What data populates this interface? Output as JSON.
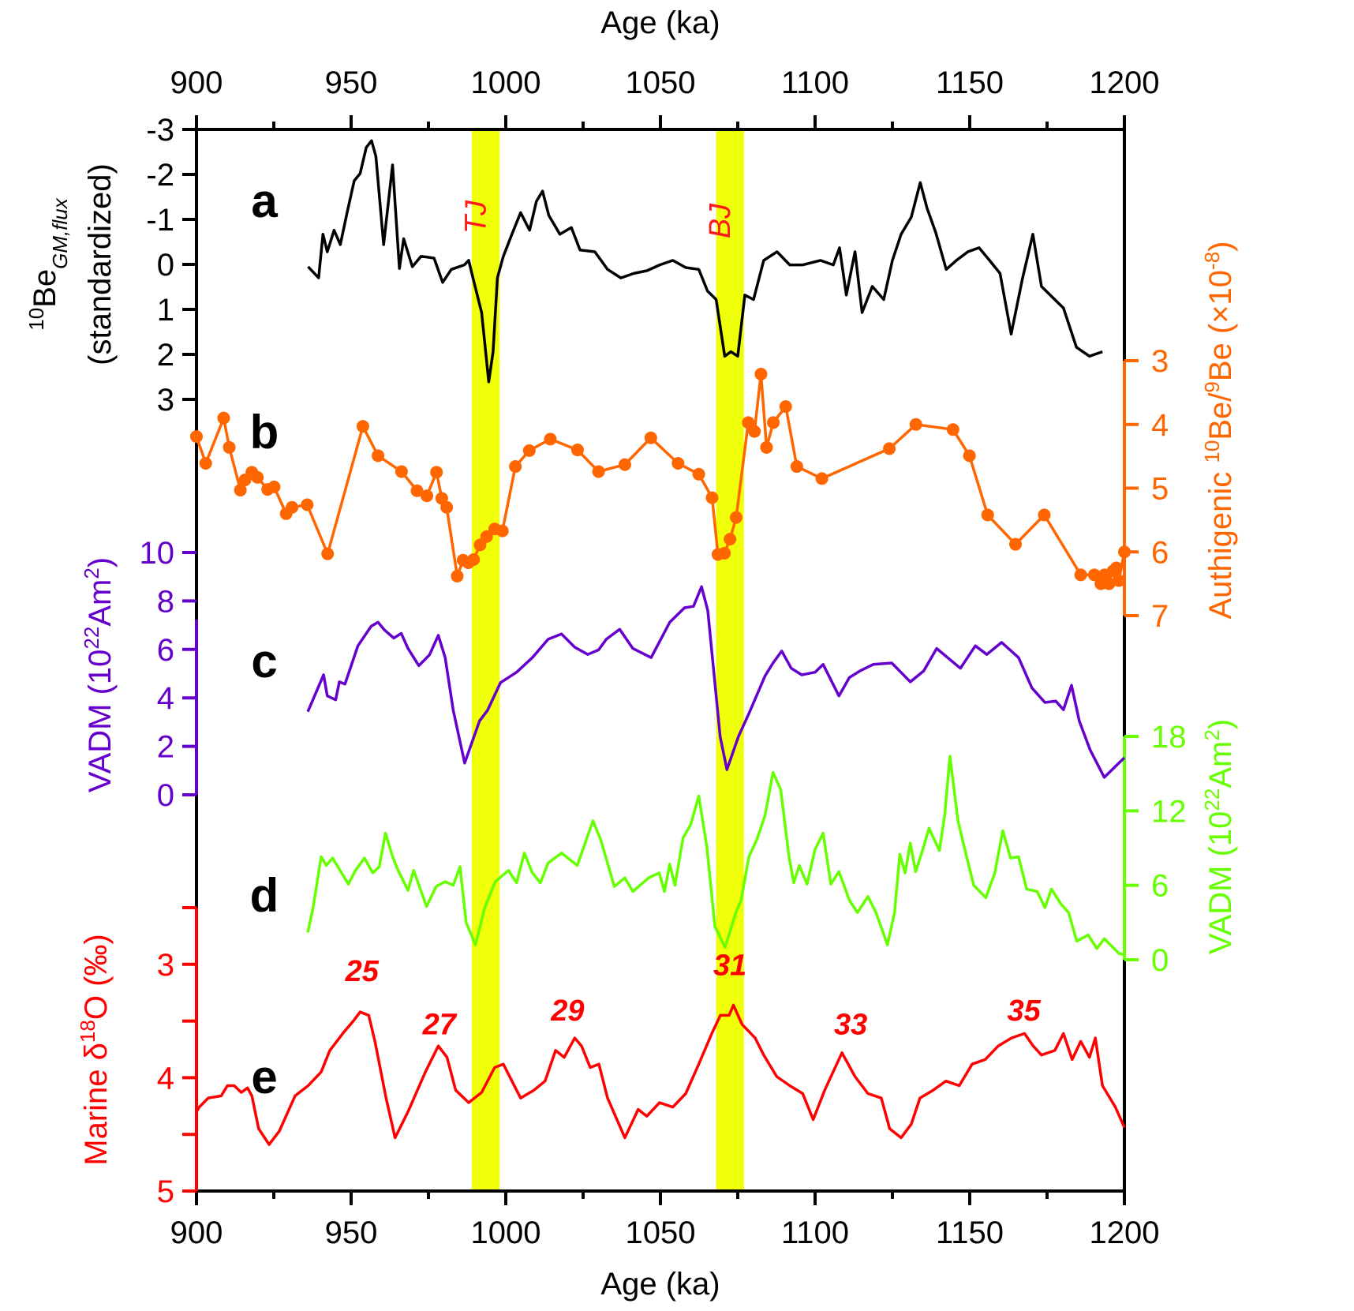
{
  "chart_data": {
    "type": "line",
    "title": "",
    "xlabel_top": "Age (ka)",
    "xlabel_bottom": "Age (ka)",
    "xlim": [
      900,
      1200
    ],
    "xticks": [
      900,
      950,
      1000,
      1050,
      1100,
      1150,
      1200
    ],
    "xtick_labels": [
      "900",
      "950",
      "1000",
      "1050",
      "1100",
      "1150",
      "1200"
    ],
    "shaded_bands": [
      {
        "label": "TJ",
        "x_range": [
          989,
          998
        ],
        "color": "#f0ff0a",
        "label_color": "#ff1a1a"
      },
      {
        "label": "BJ",
        "x_range": [
          1068,
          1077
        ],
        "color": "#f0ff0a",
        "label_color": "#ff1a1a"
      }
    ],
    "panels": [
      {
        "id": "a",
        "label": "a",
        "series_name": "10Be GM,flux (standardized)",
        "axis_side": "left",
        "axis_title_main": "Be",
        "axis_title_sup": "10",
        "axis_title_sub": "GM,flux",
        "axis_title_line2": "(standardized)",
        "color": "#000000",
        "inverted": true,
        "ylim": [
          -3,
          3
        ],
        "yticks": [
          -3,
          -2,
          -1,
          0,
          1,
          2,
          3
        ],
        "ytick_labels": [
          "-3",
          "-2",
          "-1",
          "0",
          "1",
          "2",
          "3"
        ],
        "markers": false,
        "x": [
          936.1,
          939.5,
          940.9,
          942.3,
          944.5,
          946.5,
          948.7,
          951.0,
          952.9,
          954.9,
          956.6,
          958.0,
          960.5,
          963.4,
          965.6,
          967.0,
          969.8,
          972.6,
          976.8,
          979.6,
          982.4,
          986.6,
          988.0,
          989.4,
          992.2,
          994.5,
          995.9,
          997.3,
          999.2,
          1002.0,
          1004.8,
          1007.7,
          1009.9,
          1011.9,
          1013.9,
          1017.5,
          1021.2,
          1024.0,
          1028.8,
          1032.9,
          1037.2,
          1041.4,
          1045.6,
          1049.8,
          1054.0,
          1058.2,
          1062.4,
          1065.2,
          1068.0,
          1070.8,
          1072.8,
          1075.0,
          1077.3,
          1080.1,
          1083.4,
          1087.7,
          1091.8,
          1096.1,
          1101.7,
          1105.9,
          1107.9,
          1110.1,
          1112.9,
          1115.2,
          1118.5,
          1122.2,
          1125.0,
          1127.8,
          1131.1,
          1134.0,
          1136.2,
          1139.0,
          1142.4,
          1145.7,
          1149.4,
          1153.0,
          1156.4,
          1159.8,
          1163.4,
          1167.1,
          1170.4,
          1173.2,
          1176.0,
          1180.3,
          1184.5,
          1188.7,
          1192.9
        ],
        "y": [
          0.05,
          0.3,
          -0.67,
          -0.28,
          -0.76,
          -0.44,
          -1.15,
          -1.86,
          -2.02,
          -2.6,
          -2.75,
          -2.4,
          -0.44,
          -2.21,
          0.09,
          -0.57,
          0.05,
          -0.18,
          -0.14,
          0.4,
          0.11,
          0.01,
          -0.09,
          0.3,
          1.07,
          2.61,
          1.94,
          0.3,
          -0.18,
          -0.67,
          -1.15,
          -0.76,
          -1.4,
          -1.63,
          -1.09,
          -0.67,
          -0.82,
          -0.32,
          -0.28,
          0.11,
          0.3,
          0.2,
          0.14,
          0.01,
          -0.09,
          0.07,
          0.11,
          0.59,
          0.78,
          2.04,
          1.94,
          2.04,
          0.68,
          0.78,
          -0.09,
          -0.28,
          0.01,
          0.01,
          -0.09,
          0.01,
          -0.37,
          0.68,
          -0.28,
          1.07,
          0.49,
          0.78,
          -0.09,
          -0.67,
          -1.05,
          -1.82,
          -1.25,
          -0.71,
          0.11,
          -0.09,
          -0.28,
          -0.37,
          -0.09,
          0.2,
          1.55,
          0.3,
          -0.67,
          0.49,
          0.68,
          0.97,
          1.84,
          2.04,
          1.94
        ]
      },
      {
        "id": "b",
        "label": "b",
        "series_name": "Authigenic 10Be/9Be (x10^-8)",
        "axis_side": "right",
        "axis_title_pre": "Authigenic ",
        "axis_title_sup1": "10",
        "axis_title_mid": "Be/",
        "axis_title_sup2": "9",
        "axis_title_post": "Be (×10",
        "axis_title_sup3": "-8",
        "axis_title_end": ")",
        "color": "#ff6600",
        "inverted": true,
        "ylim": [
          3,
          7
        ],
        "yticks": [
          3,
          4,
          5,
          6,
          7
        ],
        "ytick_labels": [
          "3",
          "4",
          "5",
          "6",
          "7"
        ],
        "markers": true,
        "x": [
          900.0,
          903.0,
          908.8,
          910.6,
          914.2,
          915.7,
          917.9,
          919.7,
          923.0,
          925.1,
          929.0,
          930.9,
          935.8,
          942.4,
          953.8,
          958.7,
          966.3,
          971.3,
          974.5,
          977.6,
          979.3,
          980.9,
          984.3,
          986.2,
          987.9,
          989.6,
          991.7,
          993.8,
          996.4,
          998.9,
          1003.1,
          1007.6,
          1014.4,
          1023.2,
          1030.0,
          1038.5,
          1046.9,
          1055.7,
          1062.4,
          1066.7,
          1068.6,
          1070.7,
          1072.5,
          1074.5,
          1078.4,
          1080.4,
          1082.5,
          1084.3,
          1086.5,
          1090.5,
          1094.1,
          1102.2,
          1124.0,
          1132.6,
          1144.6,
          1149.9,
          1155.8,
          1164.8,
          1174.1,
          1185.9,
          1190.3,
          1192.4,
          1193.6,
          1195.0,
          1196.3,
          1197.4,
          1198.2,
          1200.0
        ],
        "y": [
          4.19,
          4.61,
          3.9,
          4.36,
          5.03,
          4.87,
          4.75,
          4.83,
          5.02,
          4.98,
          5.4,
          5.3,
          5.26,
          6.03,
          4.03,
          4.49,
          4.74,
          5.04,
          5.12,
          4.75,
          5.16,
          5.3,
          6.38,
          6.13,
          6.17,
          6.12,
          5.89,
          5.76,
          5.64,
          5.67,
          4.66,
          4.41,
          4.23,
          4.4,
          4.74,
          4.63,
          4.21,
          4.61,
          4.78,
          5.15,
          6.04,
          6.02,
          5.8,
          5.46,
          3.97,
          4.11,
          3.21,
          4.36,
          3.97,
          3.72,
          4.66,
          4.85,
          4.38,
          4.0,
          4.08,
          4.49,
          5.42,
          5.88,
          5.42,
          6.36,
          6.36,
          6.5,
          6.36,
          6.5,
          6.3,
          6.25,
          6.45,
          6.0
        ]
      },
      {
        "id": "c",
        "label": "c",
        "series_name": "VADM (10^22 Am^2)",
        "axis_side": "left",
        "axis_title_main": "VADM (10",
        "axis_title_sup": "22",
        "axis_title_post": "Am",
        "axis_title_sup2": "2",
        "axis_title_end": ")",
        "color": "#6600cc",
        "inverted": false,
        "ylim": [
          0,
          10
        ],
        "yticks": [
          0,
          2,
          4,
          6,
          8,
          10
        ],
        "ytick_labels": [
          "0",
          "2",
          "4",
          "6",
          "8",
          "10"
        ],
        "markers": false,
        "x": [
          936.0,
          941.1,
          942.3,
          945.0,
          946.2,
          948.0,
          952.2,
          956.5,
          958.7,
          960.8,
          963.8,
          966.2,
          968.4,
          971.9,
          975.3,
          978.2,
          980.4,
          983.0,
          986.7,
          991.5,
          994.1,
          998.3,
          1003.5,
          1008.6,
          1013.7,
          1018.0,
          1022.3,
          1026.5,
          1030.0,
          1032.5,
          1036.8,
          1041.1,
          1047.0,
          1053.0,
          1057.8,
          1060.7,
          1063.3,
          1065.3,
          1069.3,
          1071.5,
          1075.2,
          1078.7,
          1083.8,
          1086.4,
          1089.2,
          1092.3,
          1095.7,
          1100.0,
          1102.6,
          1107.7,
          1111.1,
          1114.5,
          1118.8,
          1124.8,
          1130.8,
          1135.1,
          1139.3,
          1147.0,
          1151.8,
          1155.5,
          1160.3,
          1165.8,
          1170.1,
          1174.3,
          1177.8,
          1180.3,
          1182.9,
          1185.4,
          1188.9,
          1193.5,
          1197.4,
          1200.0
        ],
        "y": [
          3.43,
          4.95,
          4.08,
          3.92,
          4.66,
          4.57,
          6.15,
          6.96,
          7.12,
          6.8,
          6.47,
          6.66,
          6.04,
          5.33,
          5.77,
          6.58,
          5.66,
          3.49,
          1.31,
          3.05,
          3.49,
          4.63,
          5.06,
          5.66,
          6.42,
          6.64,
          6.09,
          5.79,
          5.98,
          6.42,
          6.83,
          6.04,
          5.66,
          7.12,
          7.72,
          7.78,
          8.59,
          7.61,
          2.4,
          1.04,
          2.4,
          3.38,
          4.9,
          5.44,
          5.93,
          5.22,
          4.95,
          5.06,
          5.38,
          4.08,
          4.84,
          5.11,
          5.38,
          5.44,
          4.66,
          5.11,
          6.04,
          5.22,
          6.15,
          5.79,
          6.29,
          5.66,
          4.41,
          3.81,
          3.87,
          3.51,
          4.52,
          3.05,
          1.86,
          0.72,
          1.21,
          1.53
        ]
      },
      {
        "id": "d",
        "label": "d",
        "series_name": "VADM (10^22 Am^2)",
        "axis_side": "right",
        "axis_title_main": "VADM (10",
        "axis_title_sup": "22",
        "axis_title_post": "Am",
        "axis_title_sup2": "2",
        "axis_title_end": ")",
        "color": "#66ff00",
        "inverted": false,
        "ylim": [
          0,
          18
        ],
        "yticks": [
          0,
          6,
          12,
          18
        ],
        "ytick_labels": [
          "0",
          "6",
          "12",
          "18"
        ],
        "markers": false,
        "x": [
          936.0,
          937.7,
          940.3,
          942.0,
          944.0,
          949.1,
          951.4,
          954.3,
          957.0,
          959.1,
          961.1,
          963.3,
          965.0,
          968.4,
          970.2,
          974.4,
          977.5,
          980.4,
          983.0,
          985.2,
          987.2,
          990.2,
          993.2,
          996.6,
          1000.9,
          1003.5,
          1006.0,
          1008.6,
          1011.2,
          1013.7,
          1018.0,
          1023.1,
          1028.2,
          1030.8,
          1035.1,
          1038.5,
          1041.1,
          1046.2,
          1049.6,
          1051.3,
          1053.0,
          1054.7,
          1057.3,
          1059.8,
          1062.4,
          1065.0,
          1067.6,
          1070.9,
          1074.4,
          1076.1,
          1078.6,
          1081.2,
          1083.8,
          1086.4,
          1088.9,
          1091.5,
          1093.1,
          1094.9,
          1097.4,
          1100.0,
          1102.6,
          1105.1,
          1107.7,
          1111.1,
          1113.7,
          1117.1,
          1119.7,
          1123.4,
          1125.7,
          1127.4,
          1129.1,
          1130.8,
          1132.5,
          1135.1,
          1136.8,
          1140.2,
          1141.9,
          1143.6,
          1146.2,
          1148.7,
          1151.3,
          1155.2,
          1158.1,
          1160.7,
          1163.2,
          1165.8,
          1168.4,
          1171.8,
          1174.3,
          1176.4,
          1179.5,
          1182.0,
          1184.6,
          1188.3,
          1191.1,
          1193.5,
          1198.3,
          1200.0
        ],
        "y": [
          2.2,
          4.2,
          8.3,
          7.6,
          8.2,
          6.1,
          7.2,
          8.2,
          7.0,
          7.5,
          10.2,
          8.4,
          7.3,
          5.6,
          7.2,
          4.3,
          5.9,
          6.3,
          6.0,
          7.5,
          3.0,
          1.2,
          4.2,
          6.3,
          7.2,
          6.2,
          8.6,
          7.0,
          6.2,
          7.8,
          8.6,
          7.6,
          11.2,
          9.6,
          5.9,
          6.6,
          5.5,
          6.6,
          7.0,
          5.5,
          7.7,
          6.0,
          9.8,
          10.9,
          13.2,
          9.1,
          2.7,
          1.0,
          3.8,
          4.8,
          8.3,
          9.7,
          11.6,
          15.1,
          13.7,
          8.4,
          6.2,
          7.6,
          6.1,
          8.9,
          10.2,
          6.1,
          7.1,
          4.8,
          3.8,
          5.1,
          3.8,
          1.2,
          3.8,
          8.5,
          7.0,
          9.4,
          7.1,
          9.1,
          10.6,
          8.8,
          11.6,
          16.4,
          11.2,
          8.6,
          6.0,
          5.0,
          7.0,
          10.4,
          8.2,
          8.3,
          5.7,
          5.5,
          4.2,
          5.7,
          4.5,
          3.8,
          1.5,
          2.0,
          0.9,
          1.7,
          0.5,
          0.4
        ]
      },
      {
        "id": "e",
        "label": "e",
        "series_name": "Marine d18O (permil)",
        "axis_side": "left",
        "axis_title_pre": "Marine δ",
        "axis_title_sup": "18",
        "axis_title_post": "O (‰)",
        "color": "#ff0000",
        "inverted": true,
        "ylim": [
          2.5,
          5
        ],
        "yticks": [
          2.5,
          3,
          3.5,
          4,
          4.5,
          5
        ],
        "ytick_labels": [
          "",
          "3",
          "",
          "4",
          "",
          "5"
        ],
        "markers": false,
        "stage_labels": [
          {
            "text": "25",
            "x": 953.5,
            "y": 3.3
          },
          {
            "text": "27",
            "x": 978.5,
            "y": 3.77
          },
          {
            "text": "29",
            "x": 1020.0,
            "y": 3.65
          },
          {
            "text": "31",
            "x": 1072.5,
            "y": 3.25
          },
          {
            "text": "33",
            "x": 1111.5,
            "y": 3.77
          },
          {
            "text": "35",
            "x": 1167.5,
            "y": 3.65
          }
        ],
        "x": [
          900.0,
          900.9,
          903.8,
          908.0,
          910.0,
          912.2,
          914.5,
          916.5,
          917.9,
          920.1,
          923.5,
          926.8,
          931.9,
          936.1,
          940.3,
          943.1,
          947.3,
          951.0,
          952.9,
          955.7,
          957.7,
          961.3,
          964.2,
          968.4,
          974.0,
          978.2,
          981.0,
          983.8,
          988.0,
          992.2,
          996.4,
          999.2,
          1002.0,
          1004.8,
          1009.1,
          1012.7,
          1016.1,
          1018.9,
          1022.3,
          1024.5,
          1027.3,
          1030.1,
          1032.9,
          1038.5,
          1042.8,
          1045.6,
          1049.7,
          1054.0,
          1058.2,
          1062.4,
          1066.6,
          1069.4,
          1072.2,
          1073.6,
          1076.4,
          1080.6,
          1083.4,
          1087.6,
          1091.8,
          1096.0,
          1099.4,
          1103.1,
          1108.7,
          1112.9,
          1117.1,
          1121.4,
          1124.1,
          1127.8,
          1131.1,
          1133.9,
          1138.2,
          1142.3,
          1146.6,
          1150.8,
          1155.0,
          1159.2,
          1163.5,
          1167.7,
          1170.5,
          1173.2,
          1177.5,
          1180.3,
          1183.1,
          1185.9,
          1188.7,
          1190.6,
          1192.9,
          1197.1,
          1200.0
        ],
        "y": [
          4.3,
          4.26,
          4.18,
          4.16,
          4.07,
          4.07,
          4.13,
          4.09,
          4.16,
          4.45,
          4.59,
          4.47,
          4.16,
          4.07,
          3.95,
          3.76,
          3.61,
          3.49,
          3.42,
          3.45,
          3.68,
          4.18,
          4.53,
          4.3,
          3.95,
          3.72,
          3.82,
          4.11,
          4.22,
          4.13,
          3.91,
          3.88,
          4.03,
          4.18,
          4.11,
          4.03,
          3.76,
          3.82,
          3.65,
          3.72,
          3.91,
          3.88,
          4.18,
          4.53,
          4.28,
          4.34,
          4.22,
          4.26,
          4.14,
          3.88,
          3.61,
          3.45,
          3.45,
          3.36,
          3.53,
          3.65,
          3.8,
          3.99,
          4.07,
          4.14,
          4.37,
          4.11,
          3.78,
          3.99,
          4.14,
          4.18,
          4.45,
          4.53,
          4.41,
          4.18,
          4.11,
          4.03,
          4.07,
          3.88,
          3.84,
          3.72,
          3.65,
          3.61,
          3.72,
          3.8,
          3.76,
          3.61,
          3.84,
          3.68,
          3.82,
          3.65,
          4.07,
          4.26,
          4.44
        ]
      }
    ]
  }
}
